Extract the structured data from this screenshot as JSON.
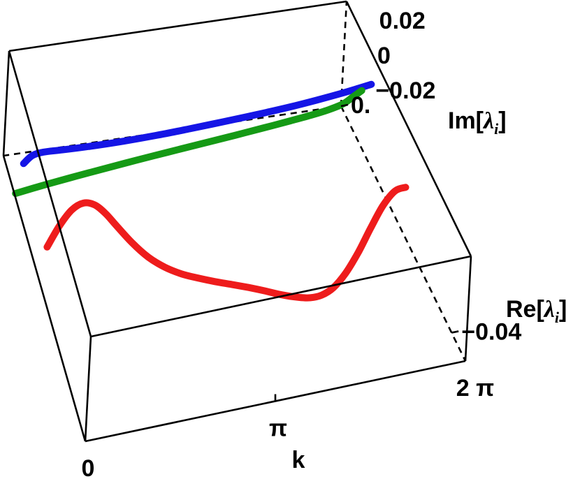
{
  "chart_data": {
    "type": "line",
    "dimension": "3d",
    "axes": {
      "x": {
        "label": "k",
        "range": [
          0,
          6.2832
        ],
        "ticks": [
          {
            "value": 0,
            "label": "0"
          },
          {
            "value": 3.1416,
            "label": "π"
          },
          {
            "value": 6.2832,
            "label": "2 π"
          }
        ]
      },
      "y": {
        "label_prefix": "Re[",
        "label_symbol": "λ",
        "label_sub": "i",
        "label_suffix": "]",
        "range": [
          -0.045,
          0.0
        ],
        "ticks": [
          {
            "value": 0.0,
            "label": "0."
          },
          {
            "value": -0.04,
            "label": "−0.04"
          }
        ]
      },
      "z": {
        "label_prefix": "Im[",
        "label_symbol": "λ",
        "label_sub": "i",
        "label_suffix": "]",
        "range": [
          -0.03,
          0.03
        ],
        "ticks": [
          {
            "value": 0.02,
            "label": "0.02"
          },
          {
            "value": 0,
            "label": "0"
          },
          {
            "value": -0.02,
            "label": "−0.02"
          }
        ]
      }
    },
    "grid": false,
    "series": [
      {
        "color": "#ee1c1c",
        "points": [
          [
            0,
            -0.0225,
            -0.0005
          ],
          [
            0.2,
            -0.0225,
            0.0105
          ],
          [
            0.4,
            -0.0225,
            0.0183
          ],
          [
            0.6,
            -0.0225,
            0.0211
          ],
          [
            0.8,
            -0.0225,
            0.0189
          ],
          [
            1.0,
            -0.0225,
            0.0128
          ],
          [
            1.2,
            -0.0225,
            0.0048
          ],
          [
            1.5,
            -0.0225,
            -0.007
          ],
          [
            1.8,
            -0.0225,
            -0.017
          ],
          [
            2.1,
            -0.0225,
            -0.0245
          ],
          [
            2.4,
            -0.0225,
            -0.0301
          ],
          [
            2.7,
            -0.0225,
            -0.0343
          ],
          [
            3.0,
            -0.0225,
            -0.0381
          ],
          [
            3.3,
            -0.0225,
            -0.0415
          ],
          [
            3.6,
            -0.0225,
            -0.045
          ],
          [
            3.9,
            -0.0225,
            -0.0488
          ],
          [
            4.2,
            -0.0225,
            -0.0528
          ],
          [
            4.5,
            -0.0225,
            -0.056
          ],
          [
            4.7,
            -0.0225,
            -0.0574
          ],
          [
            4.9,
            -0.0225,
            -0.0571
          ],
          [
            5.1,
            -0.0225,
            -0.054
          ],
          [
            5.3,
            -0.0225,
            -0.047
          ],
          [
            5.5,
            -0.0225,
            -0.0366
          ],
          [
            5.7,
            -0.0225,
            -0.0236
          ],
          [
            5.9,
            -0.0225,
            -0.0117
          ],
          [
            6.1,
            -0.0225,
            -0.0045
          ],
          [
            6.2832,
            -0.0225,
            -0.0035
          ]
        ]
      },
      {
        "color": "#1515e6",
        "points": [
          [
            0,
            -0.0095,
            0.0
          ],
          [
            0.15,
            -0.0095,
            0.0038
          ],
          [
            0.35,
            -0.0095,
            0.0048
          ],
          [
            0.7,
            -0.0095,
            0.0043
          ],
          [
            1.2,
            -0.0095,
            0.0038
          ],
          [
            1.8,
            -0.0095,
            0.0036
          ],
          [
            2.4,
            -0.0095,
            0.0039
          ],
          [
            3.0,
            -0.0095,
            0.0046
          ],
          [
            3.6,
            -0.0095,
            0.0055
          ],
          [
            4.2,
            -0.0095,
            0.0065
          ],
          [
            4.8,
            -0.0095,
            0.0078
          ],
          [
            5.3,
            -0.0095,
            0.0093
          ],
          [
            5.8,
            -0.0095,
            0.0111
          ],
          [
            6.2832,
            -0.0095,
            0.0133
          ]
        ]
      },
      {
        "color": "#159a15",
        "points": [
          [
            0,
            -0.0065,
            -0.028
          ],
          [
            0.5,
            -0.0065,
            -0.0258
          ],
          [
            1.0,
            -0.0065,
            -0.0239
          ],
          [
            1.5,
            -0.0065,
            -0.0221
          ],
          [
            2.0,
            -0.0065,
            -0.0204
          ],
          [
            2.5,
            -0.0065,
            -0.0188
          ],
          [
            3.0,
            -0.0065,
            -0.0173
          ],
          [
            3.5,
            -0.0065,
            -0.0158
          ],
          [
            4.0,
            -0.0065,
            -0.0143
          ],
          [
            4.5,
            -0.0065,
            -0.0127
          ],
          [
            5.0,
            -0.0065,
            -0.011
          ],
          [
            5.4,
            -0.0065,
            -0.0095
          ],
          [
            5.7,
            -0.0065,
            -0.008
          ],
          [
            5.95,
            -0.0065,
            -0.006
          ],
          [
            6.12,
            -0.0065,
            -0.003
          ],
          [
            6.2832,
            -0.0065,
            0.0
          ]
        ]
      }
    ]
  }
}
